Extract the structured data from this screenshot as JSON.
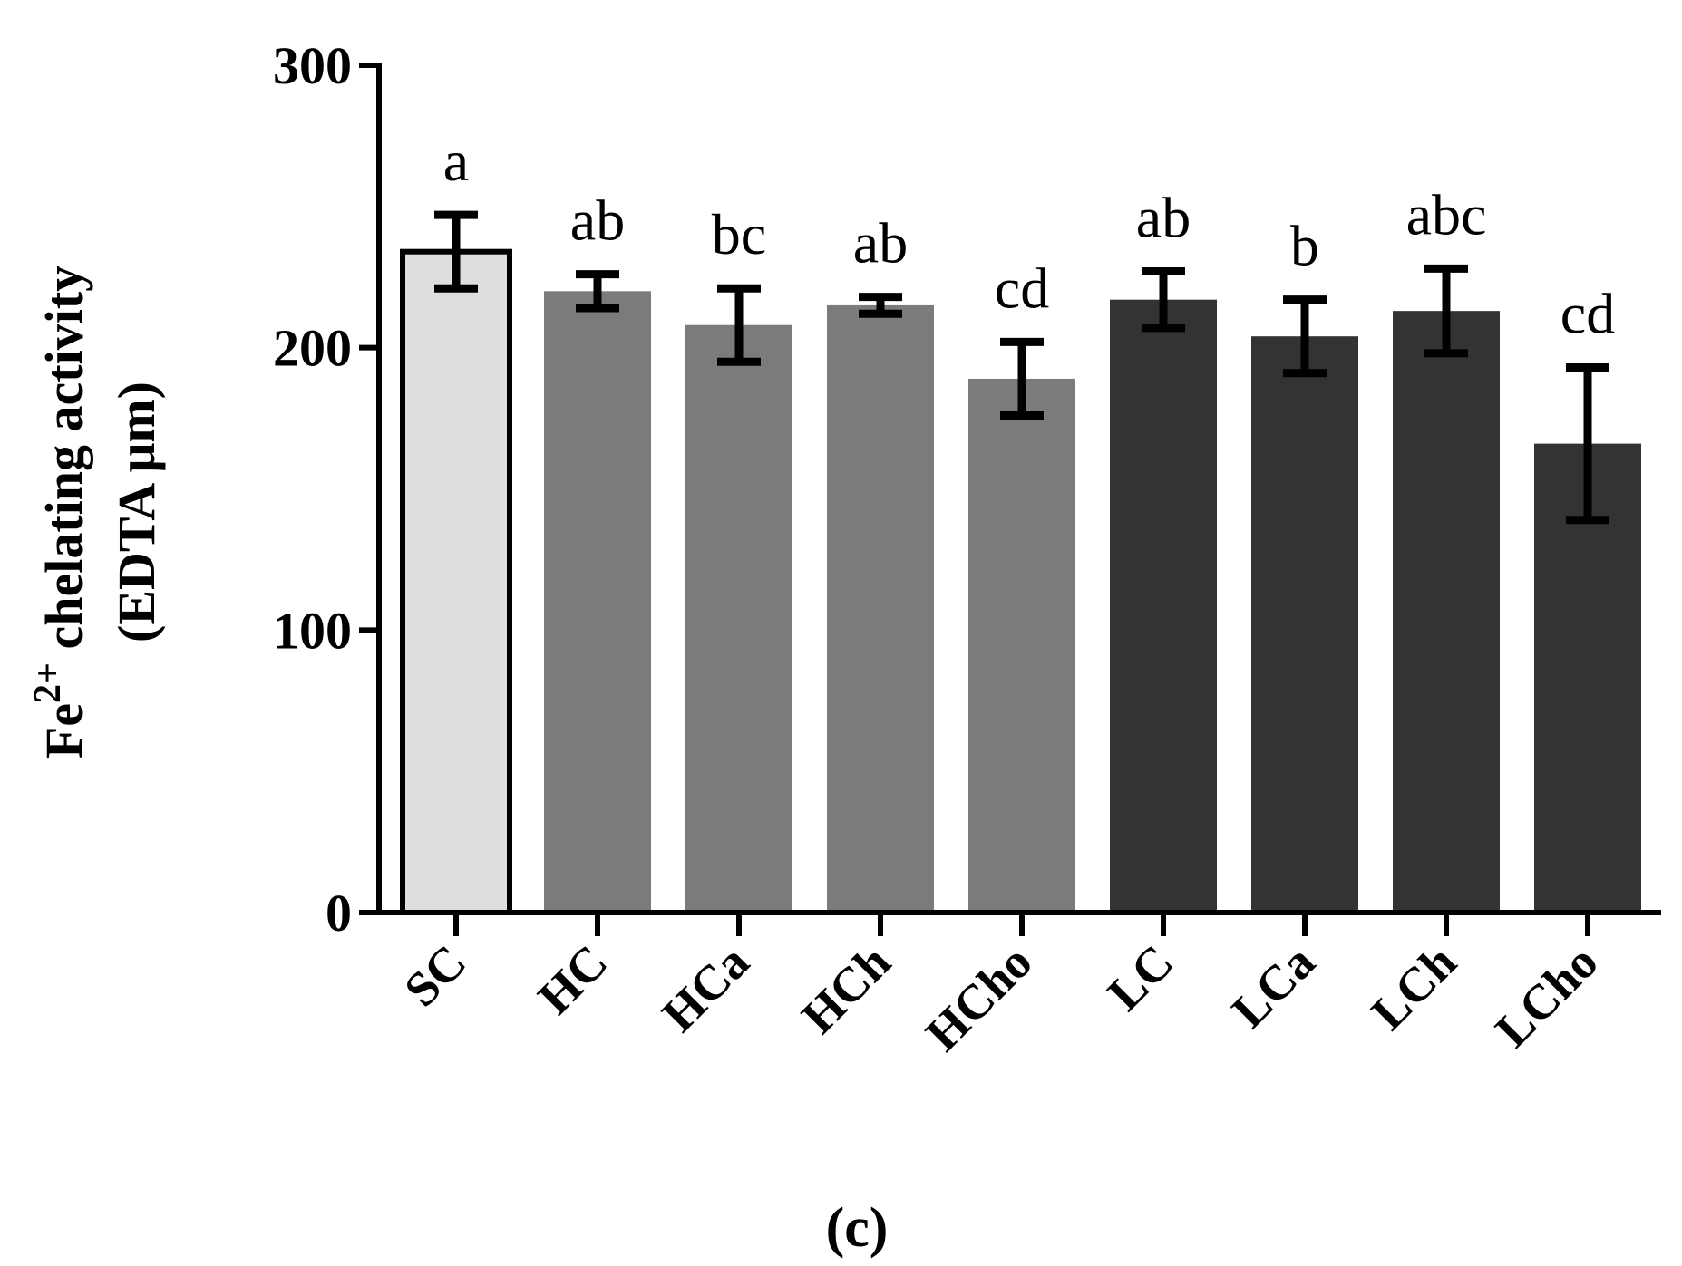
{
  "chart_data": {
    "type": "bar",
    "categories": [
      "SC",
      "HC",
      "HCa",
      "HCh",
      "HCho",
      "LC",
      "LCa",
      "LCh",
      "LCho"
    ],
    "values": [
      234,
      220,
      208,
      215,
      189,
      217,
      204,
      213,
      166
    ],
    "errors": [
      13,
      6,
      13,
      3,
      13,
      10,
      13,
      15,
      27
    ],
    "significance_letters": [
      "a",
      "ab",
      "bc",
      "ab",
      "cd",
      "ab",
      "b",
      "abc",
      "cd"
    ],
    "bar_colors": [
      "#dedede",
      "#7b7b7b",
      "#7b7b7b",
      "#7b7b7b",
      "#7b7b7b",
      "#333333",
      "#333333",
      "#333333",
      "#333333"
    ],
    "ylim": [
      0,
      300
    ],
    "yticks": [
      "0",
      "100",
      "200",
      "300"
    ],
    "ylabel_line1_base": "Fe",
    "ylabel_line1_sup": "2+",
    "ylabel_line1_rest": " chelating activity",
    "ylabel_line2": "(EDTA μm)",
    "xlabel": "",
    "title": "",
    "grid": false,
    "legend": "none"
  },
  "panel_label": "(c)"
}
